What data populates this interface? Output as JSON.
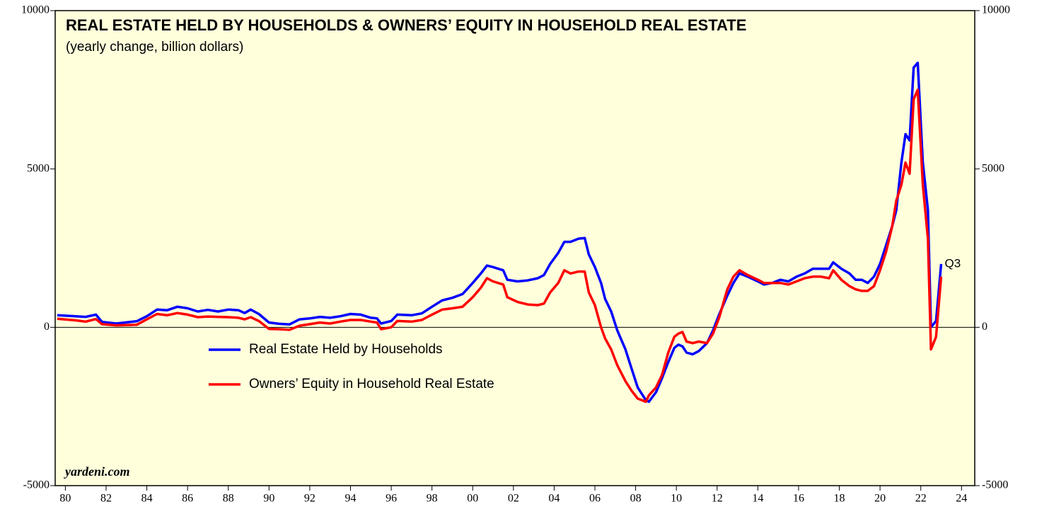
{
  "chart_data": {
    "type": "line",
    "title": "REAL ESTATE HELD BY HOUSEHOLDS & OWNERS’ EQUITY IN HOUSEHOLD REAL ESTATE",
    "subtitle": "(yearly change, billion dollars)",
    "source": "yardeni.com",
    "annotation": "Q3",
    "x": [
      1980.1,
      1981,
      1981.5,
      1982,
      1982.3,
      1983,
      1984,
      1984.5,
      1985,
      1985.5,
      1986,
      1986.5,
      1987,
      1987.5,
      1988,
      1988.5,
      1989,
      1989.3,
      1989.6,
      1990,
      1990.5,
      1991,
      1991.5,
      1992,
      1992.5,
      1993,
      1993.5,
      1994,
      1994.5,
      1995,
      1995.5,
      1995.8,
      1996,
      1996.5,
      1996.8,
      1997.5,
      1998,
      1998.5,
      1999,
      1999.5,
      2000,
      2000.5,
      2000.9,
      2001.2,
      2001.5,
      2002,
      2002.2,
      2002.7,
      2003.2,
      2003.7,
      2004,
      2004.3,
      2004.7,
      2005,
      2005.3,
      2005.7,
      2006,
      2006.2,
      2006.5,
      2006.8,
      2007,
      2007.3,
      2007.6,
      2008,
      2008.3,
      2008.6,
      2009,
      2009.15,
      2009.5,
      2009.8,
      2010.1,
      2010.4,
      2010.6,
      2010.8,
      2011,
      2011.3,
      2011.6,
      2012,
      2012.3,
      2012.6,
      2013,
      2013.3,
      2013.6,
      2014,
      2014.5,
      2014.8,
      2015.2,
      2015.6,
      2016,
      2016.4,
      2016.8,
      2017.2,
      2017.6,
      2018,
      2018.2,
      2018.6,
      2019,
      2019.3,
      2019.6,
      2019.9,
      2020.2,
      2020.5,
      2020.8,
      2021.1,
      2021.3,
      2021.55,
      2021.75,
      2021.95,
      2022.15,
      2022.35,
      2022.6,
      2022.85,
      2023,
      2023.25,
      2023.5
    ],
    "series": [
      {
        "name": "Real Estate Held by Households",
        "color": "#0000ff",
        "values": [
          380,
          350,
          330,
          400,
          170,
          120,
          190,
          350,
          560,
          540,
          650,
          600,
          500,
          550,
          500,
          560,
          540,
          450,
          560,
          420,
          150,
          110,
          90,
          250,
          280,
          330,
          300,
          350,
          420,
          400,
          300,
          280,
          120,
          200,
          400,
          380,
          440,
          650,
          850,
          930,
          1050,
          1400,
          1700,
          1950,
          1900,
          1800,
          1500,
          1450,
          1480,
          1550,
          1650,
          2000,
          2350,
          2700,
          2700,
          2800,
          2820,
          2300,
          1900,
          1400,
          900,
          500,
          -100,
          -700,
          -1300,
          -1900,
          -2300,
          -2350,
          -2050,
          -1600,
          -1100,
          -650,
          -550,
          -600,
          -800,
          -850,
          -750,
          -500,
          -100,
          400,
          1000,
          1400,
          1700,
          1600,
          1450,
          1350,
          1400,
          1500,
          1450,
          1600,
          1700,
          1850,
          1850,
          1850,
          2050,
          1850,
          1700,
          1500,
          1500,
          1400,
          1600,
          2000,
          2600,
          3200,
          3700,
          5200,
          6100,
          5900,
          8200,
          8350,
          5200,
          3700,
          0,
          200,
          2000
        ]
      },
      {
        "name": "Owners’ Equity in Household Real Estate",
        "color": "#ff0000",
        "values": [
          270,
          220,
          180,
          260,
          100,
          60,
          80,
          250,
          420,
          380,
          450,
          400,
          320,
          340,
          330,
          320,
          300,
          250,
          320,
          200,
          -50,
          -60,
          -80,
          50,
          100,
          150,
          120,
          180,
          230,
          230,
          180,
          150,
          -60,
          0,
          200,
          180,
          230,
          400,
          560,
          600,
          650,
          950,
          1250,
          1550,
          1450,
          1350,
          950,
          800,
          720,
          700,
          750,
          1100,
          1400,
          1800,
          1700,
          1760,
          1760,
          1100,
          700,
          0,
          -350,
          -700,
          -1200,
          -1700,
          -2000,
          -2250,
          -2350,
          -2150,
          -1900,
          -1500,
          -800,
          -300,
          -200,
          -150,
          -450,
          -500,
          -450,
          -500,
          -200,
          300,
          1200,
          1600,
          1800,
          1650,
          1500,
          1400,
          1400,
          1400,
          1350,
          1450,
          1550,
          1600,
          1600,
          1550,
          1800,
          1500,
          1300,
          1200,
          1150,
          1150,
          1300,
          1800,
          2400,
          3200,
          4000,
          4500,
          5200,
          4850,
          7200,
          7500,
          4500,
          2800,
          -700,
          -300,
          1600
        ]
      }
    ],
    "xlim": [
      1980,
      2025.15
    ],
    "xticks": [
      {
        "value": 1980.5,
        "label": "80"
      },
      {
        "value": 1982.5,
        "label": "82"
      },
      {
        "value": 1984.5,
        "label": "84"
      },
      {
        "value": 1986.5,
        "label": "86"
      },
      {
        "value": 1988.5,
        "label": "88"
      },
      {
        "value": 1990.5,
        "label": "90"
      },
      {
        "value": 1992.5,
        "label": "92"
      },
      {
        "value": 1994.5,
        "label": "94"
      },
      {
        "value": 1996.5,
        "label": "96"
      },
      {
        "value": 1998.5,
        "label": "98"
      },
      {
        "value": 2000.5,
        "label": "00"
      },
      {
        "value": 2002.5,
        "label": "02"
      },
      {
        "value": 2004.5,
        "label": "04"
      },
      {
        "value": 2006.5,
        "label": "06"
      },
      {
        "value": 2008.5,
        "label": "08"
      },
      {
        "value": 2010.5,
        "label": "10"
      },
      {
        "value": 2012.5,
        "label": "12"
      },
      {
        "value": 2014.5,
        "label": "14"
      },
      {
        "value": 2016.5,
        "label": "16"
      },
      {
        "value": 2018.5,
        "label": "18"
      },
      {
        "value": 2020.5,
        "label": "20"
      },
      {
        "value": 2022.5,
        "label": "22"
      },
      {
        "value": 2024.5,
        "label": "24"
      }
    ],
    "ylim": [
      -5000,
      10000
    ],
    "yticks": [
      -5000,
      0,
      5000,
      10000
    ],
    "y2lim": [
      -5000,
      10000
    ],
    "y2ticks": [
      -5000,
      0,
      5000,
      10000
    ],
    "background": "#ffffdc"
  }
}
